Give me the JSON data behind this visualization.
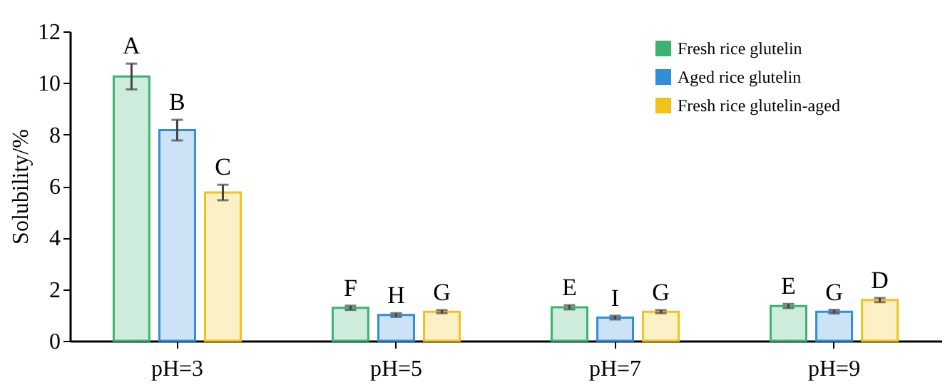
{
  "chart_data": {
    "type": "bar",
    "ylabel": "Solubility/%",
    "categories": [
      "pH=3",
      "pH=5",
      "pH=7",
      "pH=9"
    ],
    "series": [
      {
        "name": "Fresh rice glutelin",
        "color": "#3cb371",
        "values": [
          10.25,
          1.28,
          1.3,
          1.35
        ],
        "errors": [
          0.5,
          0.08,
          0.08,
          0.08
        ]
      },
      {
        "name": "Aged rice glutelin",
        "color": "#2f8fd8",
        "values": [
          8.17,
          1.0,
          0.9,
          1.13
        ],
        "errors": [
          0.4,
          0.07,
          0.07,
          0.07
        ]
      },
      {
        "name": "Fresh rice glutelin-aged",
        "color": "#f2c21b",
        "values": [
          5.75,
          1.13,
          1.13,
          1.58
        ],
        "errors": [
          0.3,
          0.06,
          0.06,
          0.08
        ]
      }
    ],
    "ylim": [
      0,
      12
    ],
    "yticks": [
      0,
      2,
      4,
      6,
      8,
      10,
      12
    ],
    "grid": false,
    "legend": "top right",
    "annotations": [
      "A",
      "B",
      "C",
      "F",
      "H",
      "G",
      "E",
      "I",
      "G",
      "E",
      "G",
      "D"
    ]
  }
}
